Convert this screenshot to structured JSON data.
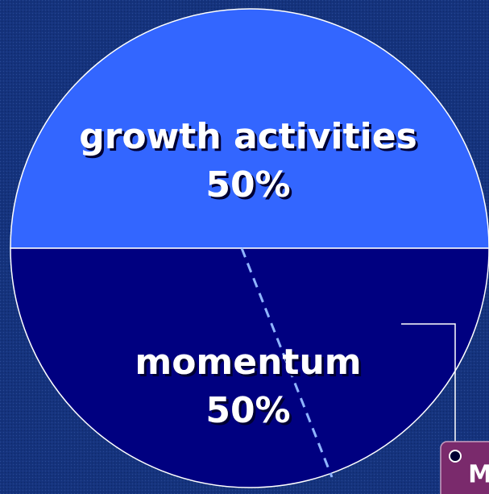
{
  "chart_data": {
    "type": "pie",
    "categories": [
      "growth activities",
      "momentum"
    ],
    "values": [
      50,
      50
    ],
    "value_labels": [
      "50%",
      "50%"
    ],
    "colors": [
      "#3366ff",
      "#000080"
    ],
    "annotation": "M"
  }
}
